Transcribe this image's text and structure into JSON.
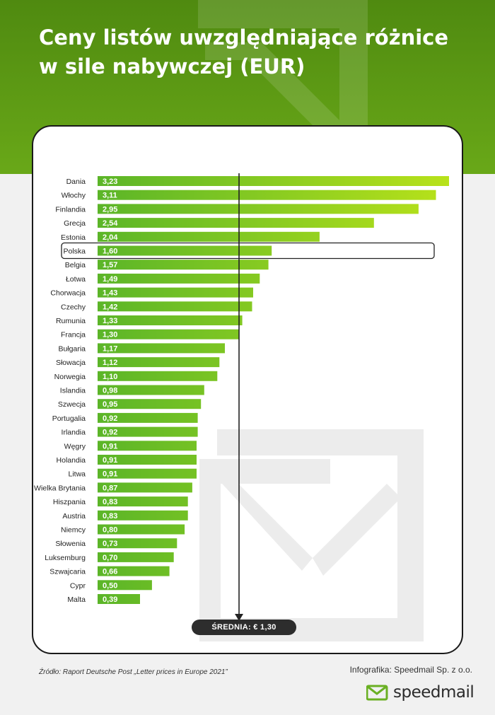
{
  "header": {
    "title": "Ceny listów uwzględniające różnice w sile nabywczej (EUR)"
  },
  "colors": {
    "hero": "#5c9a14",
    "bar_start": "#5bb528",
    "bar_end": "#b8e21a",
    "highlight_border": "#222222",
    "average_line": "#222222"
  },
  "average": {
    "label": "ŚREDNIA: € 1,30",
    "value": 1.3
  },
  "chart_data": {
    "type": "bar",
    "orientation": "horizontal",
    "categories": [
      "Dania",
      "Włochy",
      "Finlandia",
      "Grecja",
      "Estonia",
      "Polska",
      "Belgia",
      "Łotwa",
      "Chorwacja",
      "Czechy",
      "Rumunia",
      "Francja",
      "Bułgaria",
      "Słowacja",
      "Norwegia",
      "Islandia",
      "Szwecja",
      "Portugalia",
      "Irlandia",
      "Węgry",
      "Holandia",
      "Litwa",
      "Wielka Brytania",
      "Hiszpania",
      "Austria",
      "Niemcy",
      "Słowenia",
      "Luksemburg",
      "Szwajcaria",
      "Cypr",
      "Malta"
    ],
    "values": [
      3.23,
      3.11,
      2.95,
      2.54,
      2.04,
      1.6,
      1.57,
      1.49,
      1.43,
      1.42,
      1.33,
      1.3,
      1.17,
      1.12,
      1.1,
      0.98,
      0.95,
      0.92,
      0.92,
      0.91,
      0.91,
      0.91,
      0.87,
      0.83,
      0.83,
      0.8,
      0.73,
      0.7,
      0.66,
      0.5,
      0.39
    ],
    "value_labels": [
      "3,23",
      "3,11",
      "2,95",
      "2,54",
      "2,04",
      "1,60",
      "1,57",
      "1,49",
      "1,43",
      "1,42",
      "1,33",
      "1,30",
      "1,17",
      "1,12",
      "1,10",
      "0,98",
      "0,95",
      "0,92",
      "0,92",
      "0,91",
      "0,91",
      "0,91",
      "0,87",
      "0,83",
      "0,83",
      "0,80",
      "0,73",
      "0,70",
      "0,66",
      "0,50",
      "0,39"
    ],
    "highlighted": "Polska",
    "xlim": [
      0,
      3.23
    ],
    "grid": false,
    "title": "Ceny listów uwzględniające różnice w sile nabywczej (EUR)"
  },
  "footer": {
    "source": "Źródło: Raport Deutsche Post „Letter prices in Europe 2021”",
    "credit": "Infografika: Speedmail Sp. z o.o.",
    "logo_text": "speedmail"
  }
}
